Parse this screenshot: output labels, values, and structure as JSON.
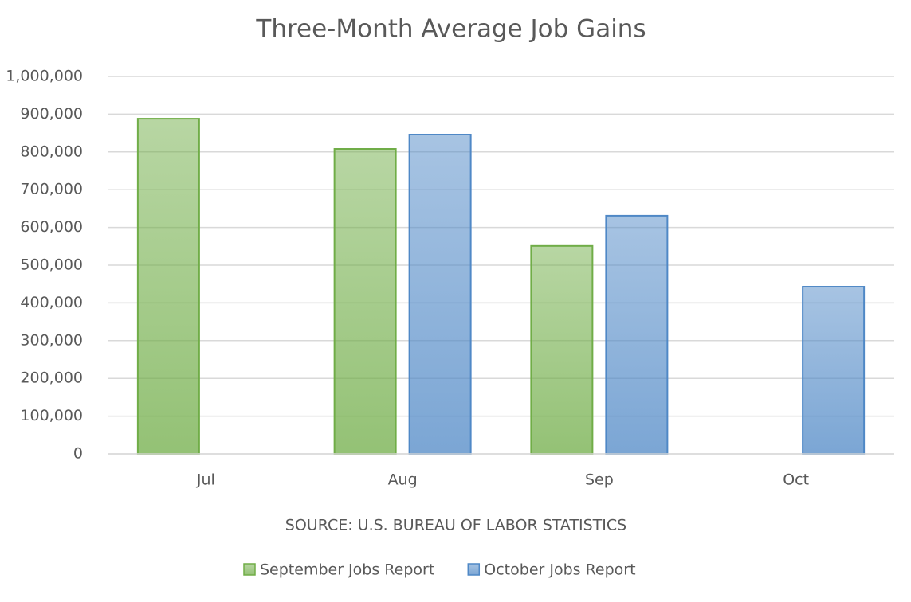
{
  "chart_data": {
    "type": "bar",
    "title": "Three-Month Average Job Gains",
    "caption": "SOURCE: U.S. BUREAU OF LABOR STATISTICS",
    "categories": [
      "Jul",
      "Aug",
      "Sep",
      "Oct"
    ],
    "series": [
      {
        "name": "September Jobs Report",
        "color": "#70ad47",
        "values": [
          888000,
          808000,
          551000,
          null
        ]
      },
      {
        "name": "October Jobs Report",
        "color": "#4f88c6",
        "values": [
          null,
          846000,
          631000,
          443000
        ]
      }
    ],
    "ylim": [
      0,
      1000000
    ],
    "yticks": [
      0,
      {
        "value": 100000,
        "label": "100,000"
      },
      {
        "value": 200000,
        "label": "200,000"
      },
      {
        "value": 300000,
        "label": "300,000"
      },
      {
        "value": 400000,
        "label": "400,000"
      },
      {
        "value": 500000,
        "label": "500,000"
      },
      {
        "value": 600000,
        "label": "600,000"
      },
      {
        "value": 700000,
        "label": "700,000"
      },
      {
        "value": 800000,
        "label": "800,000"
      },
      {
        "value": 900000,
        "label": "900,000"
      },
      {
        "value": 1000000,
        "label": "1,000,000"
      }
    ],
    "grid": true,
    "legend": "bottom"
  }
}
